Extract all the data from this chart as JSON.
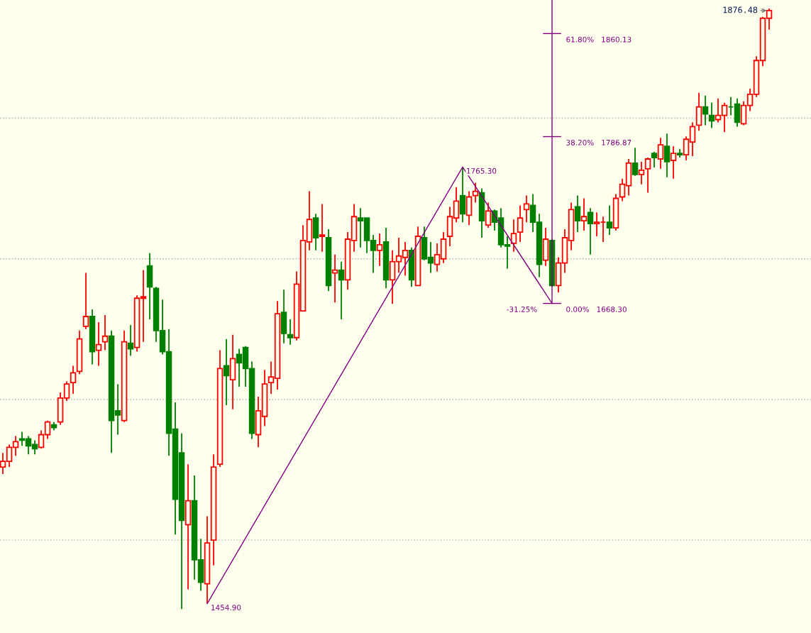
{
  "chart_data": {
    "type": "candlestick",
    "categories": [
      null,
      null,
      null,
      null,
      null,
      null,
      null,
      null,
      null,
      null,
      null,
      null,
      null,
      null,
      null,
      null,
      null,
      null,
      null,
      null,
      null,
      null,
      null,
      null,
      null,
      null,
      null,
      null,
      null,
      null,
      null,
      null,
      null,
      null,
      null,
      null,
      null,
      null,
      null,
      null,
      null,
      null,
      null,
      null,
      null,
      null,
      null,
      null,
      null,
      null,
      null,
      null,
      null,
      null,
      null,
      null,
      null,
      null,
      null,
      null,
      null,
      null,
      null,
      null,
      null,
      null,
      null,
      null,
      null,
      null,
      null,
      null,
      null,
      null,
      null,
      null,
      null,
      null,
      null,
      null,
      null,
      null,
      null,
      null,
      null,
      null,
      null,
      null,
      null,
      null,
      null,
      null,
      null,
      null,
      null,
      null,
      null,
      null,
      null,
      null,
      null,
      null,
      null,
      null,
      null,
      null,
      null,
      null,
      null,
      null,
      null,
      null,
      null,
      null,
      null,
      null,
      null,
      null,
      null,
      null,
      null
    ],
    "ohlc": [
      [
        1552,
        1562,
        1547,
        1556
      ],
      [
        1556,
        1568,
        1552,
        1566
      ],
      [
        1566,
        1574,
        1560,
        1570
      ],
      [
        1572,
        1577,
        1567,
        1571
      ],
      [
        1572,
        1574,
        1561,
        1567
      ],
      [
        1568,
        1571,
        1561,
        1565
      ],
      [
        1566,
        1578,
        1565,
        1575
      ],
      [
        1575,
        1585,
        1572,
        1584
      ],
      [
        1582,
        1584,
        1578,
        1580
      ],
      [
        1584,
        1605,
        1582,
        1601
      ],
      [
        1601,
        1613,
        1599,
        1611
      ],
      [
        1612,
        1624,
        1604,
        1619
      ],
      [
        1620,
        1649,
        1618,
        1643
      ],
      [
        1652,
        1690,
        1650,
        1659
      ],
      [
        1659,
        1664,
        1625,
        1634
      ],
      [
        1635,
        1655,
        1624,
        1639
      ],
      [
        1641,
        1660,
        1635,
        1645
      ],
      [
        1645,
        1649,
        1562,
        1585
      ],
      [
        1592,
        1611,
        1575,
        1589
      ],
      [
        1585,
        1649,
        1584,
        1641
      ],
      [
        1640,
        1653,
        1631,
        1636
      ],
      [
        1637,
        1674,
        1634,
        1672
      ],
      [
        1672,
        1692,
        1641,
        1673
      ],
      [
        1695,
        1704,
        1657,
        1680
      ],
      [
        1679,
        1680,
        1641,
        1649
      ],
      [
        1649,
        1671,
        1632,
        1634
      ],
      [
        1634,
        1650,
        1560,
        1576
      ],
      [
        1579,
        1598,
        1504,
        1529
      ],
      [
        1562,
        1576,
        1451,
        1514
      ],
      [
        1511,
        1554,
        1465,
        1528
      ],
      [
        1528,
        1546,
        1472,
        1486
      ],
      [
        1486,
        1501,
        1464,
        1470
      ],
      [
        1469,
        1517,
        1454.9,
        1498
      ],
      [
        1500,
        1561,
        1482,
        1552
      ],
      [
        1554,
        1635,
        1552,
        1622
      ],
      [
        1624,
        1643,
        1596,
        1617
      ],
      [
        1614,
        1646,
        1593,
        1629
      ],
      [
        1632,
        1636,
        1609,
        1626
      ],
      [
        1637,
        1638,
        1609,
        1622
      ],
      [
        1622,
        1627,
        1572,
        1576
      ],
      [
        1575,
        1602,
        1566,
        1592
      ],
      [
        1588,
        1621,
        1581,
        1611
      ],
      [
        1612,
        1627,
        1604,
        1616
      ],
      [
        1615,
        1670,
        1607,
        1661
      ],
      [
        1662,
        1678,
        1640,
        1647
      ],
      [
        1646,
        1657,
        1639,
        1644
      ],
      [
        1644,
        1691,
        1642,
        1682
      ],
      [
        1663,
        1724,
        1663,
        1713
      ],
      [
        1712,
        1748,
        1706,
        1728
      ],
      [
        1729,
        1732,
        1706,
        1715
      ],
      [
        1716,
        1739,
        1705,
        1717
      ],
      [
        1715,
        1721,
        1677,
        1681
      ],
      [
        1690,
        1703,
        1669,
        1692
      ],
      [
        1692,
        1698,
        1657,
        1685
      ],
      [
        1685,
        1719,
        1678,
        1714
      ],
      [
        1713,
        1739,
        1705,
        1730
      ],
      [
        1729,
        1736,
        1708,
        1727
      ],
      [
        1729,
        1729,
        1704,
        1713
      ],
      [
        1713,
        1717,
        1690,
        1706
      ],
      [
        1706,
        1718,
        1695,
        1710
      ],
      [
        1712,
        1722,
        1679,
        1685
      ],
      [
        1685,
        1706,
        1668,
        1698
      ],
      [
        1698,
        1715,
        1690,
        1702
      ],
      [
        1701,
        1712,
        1688,
        1706
      ],
      [
        1706,
        1708,
        1680,
        1685
      ],
      [
        1681,
        1723,
        1681,
        1716
      ],
      [
        1715,
        1723,
        1699,
        1700
      ],
      [
        1701,
        1712,
        1690,
        1697
      ],
      [
        1696,
        1711,
        1691,
        1703
      ],
      [
        1700,
        1719,
        1697,
        1714
      ],
      [
        1716,
        1737,
        1709,
        1730
      ],
      [
        1729,
        1751,
        1726,
        1741
      ],
      [
        1745,
        1765.3,
        1726,
        1732
      ],
      [
        1731,
        1748,
        1724,
        1744
      ],
      [
        1745,
        1754,
        1740,
        1748
      ],
      [
        1747,
        1750,
        1715,
        1727
      ],
      [
        1724,
        1740,
        1722,
        1734
      ],
      [
        1734,
        1735,
        1720,
        1726
      ],
      [
        1729,
        1736,
        1708,
        1710
      ],
      [
        1710,
        1716,
        1693,
        1709
      ],
      [
        1711,
        1728,
        1705,
        1718
      ],
      [
        1719,
        1738,
        1712,
        1729
      ],
      [
        1735,
        1745,
        1726,
        1739
      ],
      [
        1738,
        1746,
        1719,
        1726
      ],
      [
        1726,
        1732,
        1687,
        1696
      ],
      [
        1699,
        1722,
        1695,
        1714
      ],
      [
        1713,
        1714,
        1680,
        1681
      ],
      [
        1681,
        1701,
        1676,
        1697
      ],
      [
        1697,
        1721,
        1690,
        1715
      ],
      [
        1713,
        1740,
        1706,
        1735
      ],
      [
        1737,
        1745,
        1719,
        1727
      ],
      [
        1727,
        1743,
        1720,
        1730
      ],
      [
        1733,
        1736,
        1703,
        1725
      ],
      [
        1725,
        1733,
        1716,
        1726
      ],
      [
        1726,
        1730,
        1712,
        1726
      ],
      [
        1726,
        1738,
        1717,
        1722
      ],
      [
        1722,
        1746,
        1720,
        1743
      ],
      [
        1744,
        1757,
        1741,
        1753
      ],
      [
        1752,
        1771,
        1745,
        1768
      ],
      [
        1768,
        1779,
        1759,
        1760
      ],
      [
        1760,
        1769,
        1753,
        1763
      ],
      [
        1764,
        1772,
        1747,
        1771
      ],
      [
        1775,
        1776,
        1765,
        1772
      ],
      [
        1771,
        1786,
        1764,
        1781
      ],
      [
        1780,
        1789,
        1758,
        1769
      ],
      [
        1770,
        1780,
        1757,
        1775
      ],
      [
        1775,
        1778,
        1772,
        1774
      ],
      [
        1774,
        1787,
        1770,
        1785
      ],
      [
        1783,
        1797,
        1773,
        1794
      ],
      [
        1795,
        1818,
        1791,
        1808
      ],
      [
        1808,
        1816,
        1795,
        1803
      ],
      [
        1802,
        1811,
        1793,
        1798
      ],
      [
        1799,
        1814,
        1797,
        1802
      ],
      [
        1802,
        1811,
        1790,
        1809
      ],
      [
        1808,
        1815,
        1802,
        1808
      ],
      [
        1810,
        1814,
        1794,
        1797
      ],
      [
        1796,
        1812,
        1795,
        1809
      ],
      [
        1809,
        1821,
        1805,
        1817
      ],
      [
        1817,
        1844,
        1815,
        1841
      ],
      [
        1841,
        1872,
        1837,
        1871
      ],
      [
        1871,
        1878,
        1863,
        1876.48
      ]
    ],
    "colors": [
      "#ff0000",
      "#ff0000",
      "#ff0000",
      "#008000",
      "#008000",
      "#008000",
      "#ff0000",
      "#ff0000",
      "#008000",
      "#ff0000",
      "#ff0000",
      "#ff0000",
      "#ff0000",
      "#ff0000",
      "#008000",
      "#ff0000",
      "#ff0000",
      "#008000",
      "#008000",
      "#ff0000",
      "#008000",
      "#ff0000",
      "#ff0000",
      "#008000",
      "#008000",
      "#008000",
      "#008000",
      "#008000",
      "#008000",
      "#ff0000",
      "#008000",
      "#008000",
      "#ff0000",
      "#ff0000",
      "#ff0000",
      "#008000",
      "#ff0000",
      "#008000",
      "#008000",
      "#008000",
      "#ff0000",
      "#ff0000",
      "#ff0000",
      "#ff0000",
      "#008000",
      "#008000",
      "#ff0000",
      "#ff0000",
      "#ff0000",
      "#008000",
      "#ff0000",
      "#008000",
      "#ff0000",
      "#008000",
      "#ff0000",
      "#ff0000",
      "#008000",
      "#008000",
      "#008000",
      "#ff0000",
      "#008000",
      "#ff0000",
      "#ff0000",
      "#ff0000",
      "#008000",
      "#ff0000",
      "#008000",
      "#008000",
      "#ff0000",
      "#ff0000",
      "#ff0000",
      "#ff0000",
      "#008000",
      "#ff0000",
      "#ff0000",
      "#008000",
      "#ff0000",
      "#008000",
      "#008000",
      "#008000",
      "#ff0000",
      "#ff0000",
      "#ff0000",
      "#008000",
      "#008000",
      "#ff0000",
      "#008000",
      "#ff0000",
      "#ff0000",
      "#ff0000",
      "#008000",
      "#ff0000",
      "#008000",
      "#ff0000",
      "#ff0000",
      "#008000",
      "#ff0000",
      "#ff0000",
      "#ff0000",
      "#008000",
      "#ff0000",
      "#ff0000",
      "#008000",
      "#ff0000",
      "#008000",
      "#ff0000",
      "#008000",
      "#ff0000",
      "#ff0000",
      "#ff0000",
      "#008000",
      "#008000",
      "#ff0000",
      "#ff0000",
      "#008000",
      "#008000",
      "#ff0000",
      "#ff0000",
      "#ff0000",
      "#ff0000",
      "#ff0000"
    ],
    "value_labels": [
      null,
      null,
      null,
      null,
      null,
      null,
      null,
      null,
      null,
      null,
      null,
      null,
      null,
      null,
      null,
      null,
      null,
      null,
      null,
      null,
      null,
      null,
      null,
      null,
      null,
      null,
      null,
      null,
      null,
      null,
      null,
      null,
      null,
      null,
      null,
      null,
      null,
      null,
      null,
      null,
      null,
      null,
      null,
      null,
      null,
      null,
      null,
      null,
      null,
      null,
      null,
      null,
      null,
      null,
      null,
      null,
      null,
      null,
      null,
      null,
      null,
      null,
      null,
      null,
      null,
      null,
      null,
      null,
      null,
      null,
      null,
      null,
      null,
      null,
      null,
      null,
      null,
      null,
      null,
      null,
      null,
      null,
      null,
      null,
      null,
      null,
      null,
      null,
      null,
      null,
      null,
      null,
      null,
      null,
      null,
      null,
      null,
      null,
      null,
      null,
      null,
      null,
      null,
      null,
      null,
      null,
      null,
      null,
      null,
      null,
      null,
      null,
      null,
      null,
      null,
      null,
      null,
      null,
      null,
      null,
      "1876.48"
    ],
    "series": [
      {
        "type": "line",
        "color": "#800080",
        "values": [
          null,
          null,
          null,
          null,
          null,
          null,
          null,
          null,
          null,
          null,
          null,
          null,
          null,
          null,
          null,
          null,
          null,
          null,
          null,
          null,
          null,
          null,
          null,
          null,
          null,
          null,
          null,
          null,
          null,
          null,
          null,
          null,
          1454.9,
          null,
          null,
          null,
          null,
          null,
          null,
          null,
          null,
          null,
          null,
          null,
          null,
          null,
          null,
          null,
          null,
          null,
          null,
          null,
          null,
          null,
          null,
          null,
          null,
          null,
          null,
          null,
          null,
          null,
          null,
          null,
          null,
          null,
          null,
          null,
          null,
          null,
          null,
          null,
          1765.3,
          null,
          null,
          null,
          null,
          null,
          null,
          null,
          null,
          null,
          null,
          null,
          null,
          null,
          1668.3,
          null,
          null,
          null,
          null,
          null,
          null,
          null,
          null,
          null,
          null,
          null,
          null,
          null,
          null,
          null,
          null,
          null,
          null,
          null,
          null,
          null,
          null,
          null,
          null,
          null,
          null,
          null,
          null,
          null,
          null,
          null,
          null,
          null,
          null
        ],
        "value_labels": [
          null,
          null,
          null,
          null,
          null,
          null,
          null,
          null,
          null,
          null,
          null,
          null,
          null,
          null,
          null,
          null,
          null,
          null,
          null,
          null,
          null,
          null,
          null,
          null,
          null,
          null,
          null,
          null,
          null,
          null,
          null,
          null,
          "1454.90",
          null,
          null,
          null,
          null,
          null,
          null,
          null,
          null,
          null,
          null,
          null,
          null,
          null,
          null,
          null,
          null,
          null,
          null,
          null,
          null,
          null,
          null,
          null,
          null,
          null,
          null,
          null,
          null,
          null,
          null,
          null,
          null,
          null,
          null,
          null,
          null,
          null,
          null,
          null,
          "1765.30",
          null,
          null,
          null,
          null,
          null,
          null,
          null,
          null,
          null,
          null,
          null,
          null,
          null,
          null,
          null,
          null,
          null,
          null,
          null,
          null,
          null,
          null,
          null,
          null,
          null,
          null,
          null,
          null,
          null,
          null,
          null,
          null,
          null,
          null,
          null,
          null,
          null,
          null,
          null,
          null,
          null,
          null,
          null,
          null,
          null,
          null,
          null,
          null
        ]
      }
    ],
    "ref_lines": [
      {
        "axis": "y",
        "value": 1860.13,
        "label": "61.80%   1860.13",
        "color": "#800080"
      },
      {
        "axis": "y",
        "value": 1786.87,
        "label": "38.20%   1786.87",
        "color": "#800080"
      },
      {
        "axis": "y",
        "value": 1668.3,
        "label": "0.00%   1668.30",
        "color": "#800080"
      }
    ],
    "annotations": [
      "-31.25%"
    ],
    "ylim": [
      1434,
      1884
    ],
    "yticks": [
      {
        "value": 1500,
        "label": null
      },
      {
        "value": 1600,
        "label": null
      },
      {
        "value": 1700,
        "label": null
      },
      {
        "value": 1800,
        "label": null
      }
    ],
    "grid": "y"
  }
}
